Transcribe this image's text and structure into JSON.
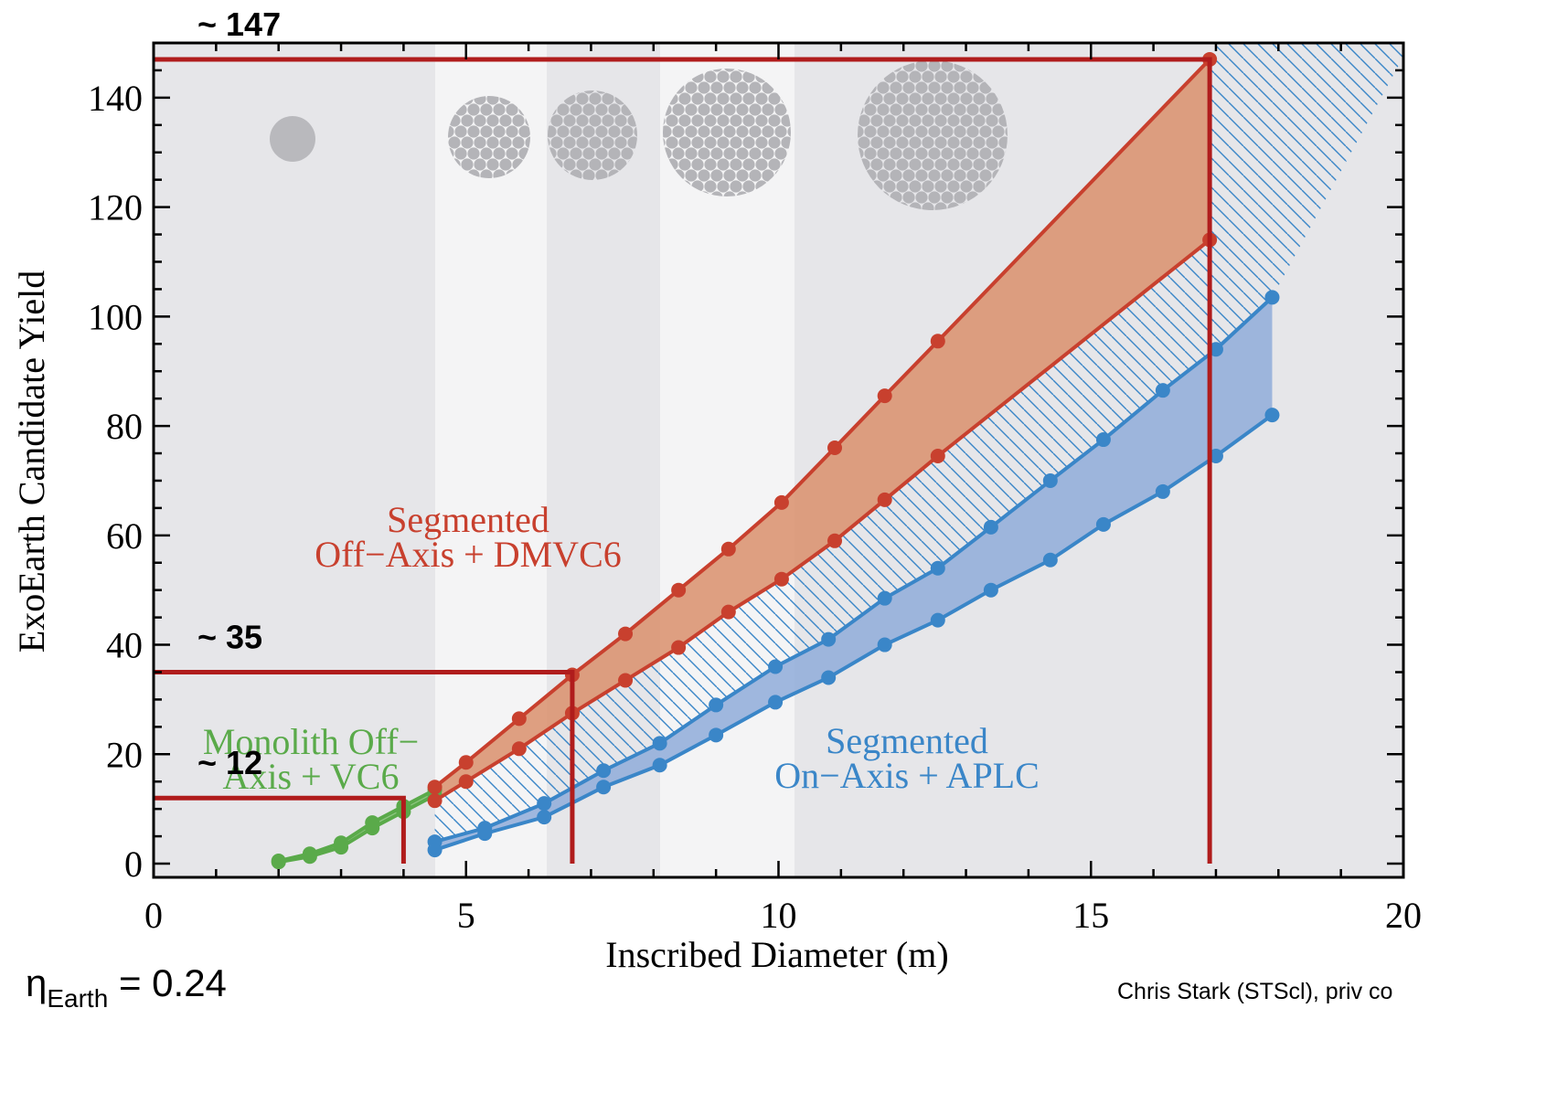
{
  "chart_data": {
    "type": "line",
    "x_label": "Inscribed Diameter (m)",
    "y_label": "ExoEarth Candidate Yield",
    "xlim": [
      0,
      20
    ],
    "ylim": [
      -2.5,
      150
    ],
    "xticks": [
      0,
      5,
      10,
      15,
      20
    ],
    "yticks": [
      0,
      20,
      40,
      60,
      80,
      100,
      120,
      140
    ],
    "series": [
      {
        "color": "#5aaa4a",
        "x": [
          2,
          2.5,
          3,
          3.5,
          4,
          4.5
        ],
        "values": [
          0.5,
          1.8,
          3.8,
          7.5,
          10.5,
          13.5
        ]
      },
      {
        "color": "#5aaa4a",
        "x": [
          2,
          2.5,
          3,
          3.5,
          4,
          4.5
        ],
        "values": [
          0.3,
          1.3,
          3,
          6.5,
          9.5,
          12.5
        ]
      },
      {
        "color": "#c8402e",
        "x": [
          4.5,
          5,
          5.85,
          6.7,
          7.55,
          8.4,
          9.2,
          10.05,
          10.9,
          11.7,
          12.55,
          16.9
        ],
        "values": [
          14,
          18.5,
          26.5,
          34.5,
          42,
          50,
          57.5,
          66,
          76,
          85.5,
          95.5,
          147
        ]
      },
      {
        "color": "#c8402e",
        "x": [
          4.5,
          5,
          5.85,
          6.7,
          7.55,
          8.4,
          9.2,
          10.05,
          10.9,
          11.7,
          12.55,
          16.9
        ],
        "values": [
          11.5,
          15,
          21,
          27.5,
          33.5,
          39.5,
          46,
          52,
          59,
          66.5,
          74.5,
          114
        ]
      },
      {
        "color": "#3a86c8",
        "x": [
          4.5,
          5.3,
          6.25,
          7.2,
          8.1,
          9.0,
          9.95,
          10.8,
          11.7,
          12.55,
          13.4,
          14.35,
          15.2,
          16.15,
          17.0,
          17.9
        ],
        "values": [
          4,
          6.5,
          11,
          17,
          22,
          29,
          36,
          41,
          48.5,
          54,
          61.5,
          70,
          77.5,
          86.5,
          94,
          103.5
        ]
      },
      {
        "color": "#3a86c8",
        "x": [
          4.5,
          5.3,
          6.25,
          7.2,
          8.1,
          9.0,
          9.95,
          10.8,
          11.7,
          12.55,
          13.4,
          14.35,
          15.2,
          16.15,
          17.0,
          17.9
        ],
        "values": [
          2.5,
          5.5,
          8.5,
          14,
          18,
          23.5,
          29.5,
          34,
          40,
          44.5,
          50,
          55.5,
          62,
          68,
          74.5,
          82
        ]
      }
    ],
    "regions": [
      {
        "lines": [
          "Monolith Off−",
          "Axis + VC6"
        ],
        "color": "#5aaa4a",
        "fill": "#7fc070"
      },
      {
        "lines": [
          "Segmented",
          "Off−Axis + DMVC6"
        ],
        "color": "#c8402e",
        "fill": "#d98f6c"
      },
      {
        "lines": [
          "Segmented",
          "On−Axis + APLC"
        ],
        "color": "#3a86c8",
        "fill": "#8fabd9"
      }
    ],
    "annotations": [
      {
        "label": "~ 147",
        "x": 16.9,
        "y": 147
      },
      {
        "label": "~ 35",
        "x": 6.7,
        "y": 35
      },
      {
        "label": "~ 12",
        "x": 4,
        "y": 12
      }
    ],
    "annotation_color": "#b01c1c",
    "footnote": {
      "symbol": "η",
      "subscript": "Earth",
      "text": " = 0.24"
    },
    "credit": "Chris Stark (STScl), priv co"
  }
}
